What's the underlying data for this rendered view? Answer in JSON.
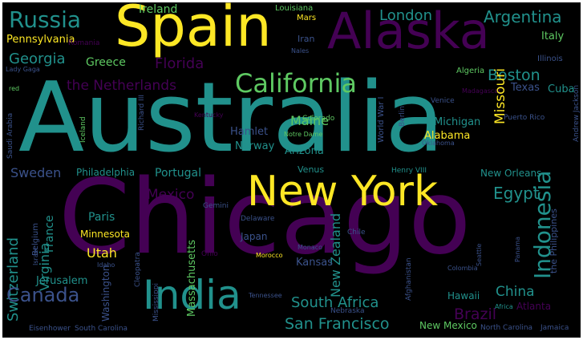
{
  "colors": {
    "background": "#000000",
    "frame": "#ffffff",
    "yellow": "#fde725",
    "green": "#5ec962",
    "teal": "#21918c",
    "blue": "#3b528b",
    "purple": "#440154",
    "lightgreen": "#b5de2b",
    "cyan": "#2a9d8f"
  },
  "words": [
    "Chicago",
    "Australia",
    "New York",
    "Spain",
    "Alaska",
    "India",
    "Indonesia",
    "California",
    "Russia",
    "Argentina",
    "London",
    "Ireland",
    "Pennsylvania",
    "Georgia",
    "Greece",
    "Florida",
    "the Netherlands",
    "Boston",
    "Louisiana",
    "Mars",
    "Iran",
    "Nales",
    "Italy",
    "Illinois",
    "Algeria",
    "Lady Gaga",
    "red",
    "Texas",
    "Cuba",
    "Venice",
    "Madagascar",
    "Missouri",
    "Maine",
    "Hamlet",
    "Michigan",
    "Colorado",
    "Notre Dame",
    "Alabama",
    "Puerto Rico",
    "Norway",
    "Arizona",
    "World War I",
    "Berlin",
    "Oklahoma",
    "Sweden",
    "Philadelphia",
    "Portugal",
    "Venus",
    "Henry VIII",
    "New Orleans",
    "Mexico",
    "Egypt",
    "Switzerland",
    "Belgium",
    "Virginia",
    "France",
    "Paris",
    "Minnesota",
    "Gemini",
    "Delaware",
    "New Zealand",
    "Utah",
    "Japan",
    "Chile",
    "Idaho",
    "Cleopatra",
    "Massachusetts",
    "Monaco",
    "Kansas",
    "Afghanistan",
    "Colombia",
    "Seattle",
    "Panama",
    "Israel",
    "Ohio",
    "Morocco",
    "Jerusalem",
    "Canada",
    "Washington",
    "Mississippi",
    "Tennessee",
    "South Africa",
    "Hawaii",
    "China",
    "Brazil",
    "Africa",
    "Atlanta",
    "San Francisco",
    "Nebraska",
    "New Mexico",
    "North Carolina",
    "Jamaica",
    "Eisenhower",
    "South Carolina",
    "the Philippines",
    "Richard III",
    "Kentucky",
    "Iceland",
    "Saudi Arabia",
    "Andrew Jackson",
    "Romania"
  ]
}
